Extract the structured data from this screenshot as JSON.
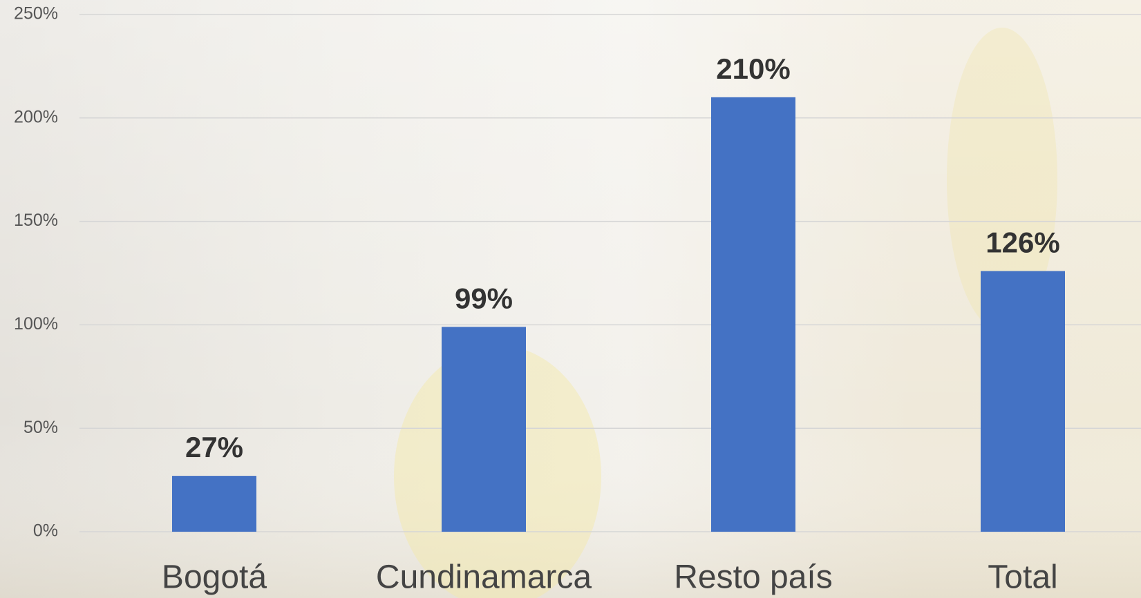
{
  "chart_data": {
    "type": "bar",
    "categories": [
      "Bogotá",
      "Cundinamarca",
      "Resto país",
      "Total"
    ],
    "values": [
      27,
      99,
      210,
      126
    ],
    "value_labels": [
      "27%",
      "99%",
      "210%",
      "126%"
    ],
    "color": "#4472c4",
    "ylim": [
      0,
      250
    ],
    "yticks": [
      {
        "value": 0,
        "label": "0%"
      },
      {
        "value": 50,
        "label": "50%"
      },
      {
        "value": 100,
        "label": "100%"
      },
      {
        "value": 150,
        "label": "150%"
      },
      {
        "value": 200,
        "label": "200%"
      },
      {
        "value": 250,
        "label": "250%"
      }
    ],
    "grid": true
  }
}
